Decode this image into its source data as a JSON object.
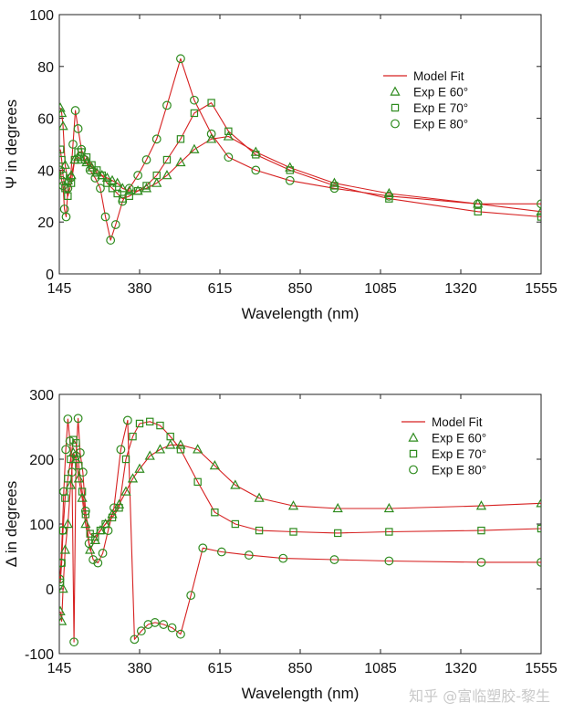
{
  "chart_data": [
    {
      "type": "line",
      "xlabel": "Wavelength (nm)",
      "ylabel": "Ψ in degrees",
      "xlim": [
        145,
        1555
      ],
      "ylim": [
        0,
        100
      ],
      "xticks": [
        145,
        380,
        615,
        850,
        1085,
        1320,
        1555
      ],
      "yticks": [
        0,
        20,
        40,
        60,
        80,
        100
      ],
      "legend": {
        "position": "right",
        "fit_label": "Model Fit",
        "entries": [
          "Exp E 60°",
          "Exp E 70°",
          "Exp E 80°"
        ]
      },
      "series": [
        {
          "name": "Exp E 60°",
          "marker": "triangle",
          "x": [
            148,
            152,
            156,
            162,
            170,
            180,
            190,
            200,
            210,
            225,
            240,
            255,
            270,
            285,
            300,
            315,
            330,
            350,
            375,
            400,
            430,
            460,
            500,
            540,
            590,
            640,
            720,
            820,
            950,
            1110,
            1370,
            1555
          ],
          "y": [
            64,
            62,
            57,
            42,
            36,
            38,
            44,
            45,
            44,
            43,
            41,
            39,
            38,
            37,
            36,
            35,
            33,
            32,
            32,
            33,
            35,
            38,
            43,
            48,
            52,
            53,
            47,
            41,
            35,
            31,
            27,
            24
          ]
        },
        {
          "name": "Exp E 70°",
          "marker": "square",
          "x": [
            148,
            152,
            156,
            162,
            170,
            180,
            190,
            200,
            210,
            225,
            240,
            255,
            270,
            285,
            300,
            315,
            330,
            350,
            375,
            400,
            430,
            460,
            500,
            540,
            590,
            640,
            720,
            820,
            950,
            1110,
            1370,
            1555
          ],
          "y": [
            48,
            44,
            38,
            33,
            30,
            35,
            44,
            47,
            47,
            45,
            42,
            40,
            38,
            35,
            33,
            31,
            29,
            30,
            32,
            34,
            38,
            44,
            52,
            62,
            66,
            55,
            46,
            40,
            34,
            29,
            24,
            22
          ]
        },
        {
          "name": "Exp E 80°",
          "marker": "circle",
          "x": [
            148,
            152,
            156,
            160,
            165,
            170,
            178,
            185,
            192,
            200,
            210,
            220,
            235,
            250,
            265,
            280,
            295,
            310,
            330,
            350,
            375,
            400,
            430,
            460,
            500,
            540,
            590,
            640,
            720,
            820,
            950,
            1110,
            1370,
            1555
          ],
          "y": [
            40,
            36,
            34,
            25,
            22,
            33,
            37,
            50,
            63,
            56,
            48,
            44,
            40,
            37,
            33,
            22,
            13,
            19,
            28,
            33,
            38,
            44,
            52,
            65,
            83,
            67,
            54,
            45,
            40,
            36,
            33,
            30,
            27,
            27
          ]
        }
      ]
    },
    {
      "type": "line",
      "xlabel": "Wavelength (nm)",
      "ylabel": "Δ in degrees",
      "xlim": [
        145,
        1555
      ],
      "ylim": [
        -100,
        300
      ],
      "xticks": [
        145,
        380,
        615,
        850,
        1085,
        1320,
        1555
      ],
      "yticks": [
        -100,
        0,
        100,
        200,
        300
      ],
      "legend": {
        "position": "top-right",
        "fit_label": "Model Fit",
        "entries": [
          "Exp E 60°",
          "Exp E 70°",
          "Exp E 80°"
        ]
      },
      "series": [
        {
          "name": "Exp E 60°",
          "marker": "triangle",
          "x": [
            148,
            152,
            156,
            162,
            170,
            178,
            186,
            194,
            202,
            212,
            222,
            235,
            250,
            265,
            280,
            300,
            320,
            340,
            360,
            380,
            410,
            440,
            470,
            500,
            550,
            600,
            660,
            730,
            830,
            960,
            1110,
            1380,
            1555
          ],
          "y": [
            -35,
            -50,
            0,
            60,
            100,
            160,
            210,
            200,
            170,
            140,
            100,
            60,
            75,
            90,
            100,
            115,
            130,
            150,
            170,
            185,
            205,
            215,
            222,
            222,
            215,
            190,
            160,
            140,
            128,
            124,
            124,
            128,
            132
          ]
        },
        {
          "name": "Exp E 70°",
          "marker": "square",
          "x": [
            148,
            152,
            156,
            162,
            170,
            178,
            186,
            194,
            202,
            212,
            222,
            235,
            250,
            265,
            280,
            300,
            320,
            340,
            360,
            380,
            410,
            440,
            470,
            500,
            550,
            600,
            660,
            730,
            830,
            960,
            1110,
            1380,
            1555
          ],
          "y": [
            10,
            40,
            90,
            140,
            170,
            200,
            230,
            225,
            190,
            150,
            115,
            85,
            80,
            90,
            100,
            110,
            125,
            200,
            235,
            255,
            258,
            252,
            235,
            215,
            165,
            118,
            100,
            90,
            88,
            86,
            88,
            90,
            93
          ]
        },
        {
          "name": "Exp E 80°",
          "marker": "circle",
          "x": [
            146,
            150,
            154,
            158,
            164,
            170,
            176,
            182,
            188,
            194,
            200,
            206,
            214,
            222,
            232,
            244,
            258,
            272,
            288,
            305,
            325,
            345,
            365,
            385,
            405,
            425,
            450,
            475,
            500,
            530,
            565,
            620,
            700,
            800,
            950,
            1110,
            1380,
            1555
          ],
          "y": [
            15,
            40,
            90,
            150,
            215,
            262,
            228,
            180,
            -82,
            205,
            263,
            210,
            180,
            120,
            70,
            45,
            40,
            55,
            90,
            125,
            215,
            260,
            -78,
            -65,
            -55,
            -52,
            -55,
            -60,
            -70,
            -10,
            63,
            57,
            52,
            47,
            45,
            43,
            41,
            41
          ]
        }
      ]
    }
  ],
  "watermark": "知乎 @富临塑胶-黎生"
}
